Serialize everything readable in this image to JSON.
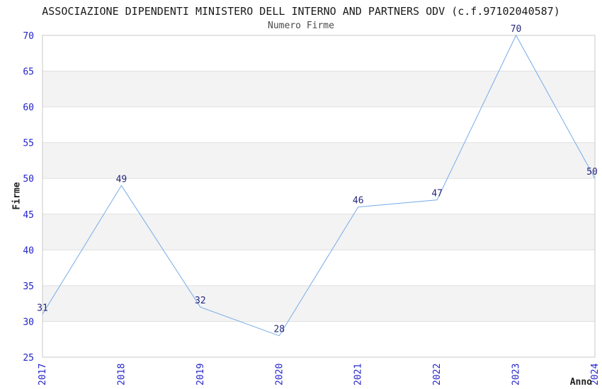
{
  "chart_data": {
    "type": "line",
    "title": "ASSOCIAZIONE DIPENDENTI MINISTERO DELL INTERNO AND PARTNERS ODV (c.f.97102040587)",
    "subtitle": "Numero Firme",
    "xlabel": "Anno",
    "ylabel": "Firme",
    "categories": [
      "2017",
      "2018",
      "2019",
      "2020",
      "2021",
      "2022",
      "2023",
      "2024"
    ],
    "values": [
      31,
      49,
      32,
      28,
      46,
      47,
      70,
      50
    ],
    "ylim": [
      25,
      70
    ],
    "ytick_step": 5,
    "yticks": [
      25,
      30,
      35,
      40,
      45,
      50,
      55,
      60,
      65,
      70
    ],
    "grid": "alternating-horizontal-bands",
    "legend": "none",
    "point_labels_shown": true,
    "colors": {
      "line": "#76abe8",
      "tick_labels": "#2323cc",
      "value_labels": "#26267e",
      "band": "#f3f3f3",
      "gridline": "#e0e0e0",
      "plot_border": "#c8c8c8",
      "title": "#1a1a1a",
      "subtitle": "#4a4a4a",
      "axis_labels": "#222222",
      "background": "#ffffff"
    }
  }
}
